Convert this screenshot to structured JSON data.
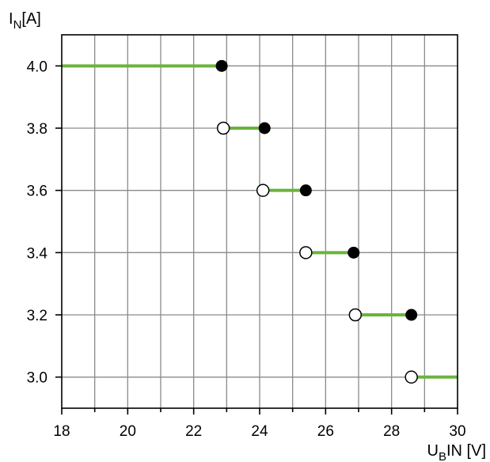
{
  "chart_data": {
    "type": "line",
    "xlabel": {
      "main": "U",
      "sub": "B",
      "rest": "IN [V]"
    },
    "ylabel": {
      "main": "I",
      "sub": "N",
      "rest": "[A]"
    },
    "xlim": [
      18,
      30
    ],
    "ylim": [
      2.9,
      4.1
    ],
    "x_ticks": [
      "18",
      "20",
      "22",
      "24",
      "26",
      "28",
      "30"
    ],
    "y_ticks": [
      "4.0",
      "3.8",
      "3.6",
      "3.4",
      "3.2",
      "3.0"
    ],
    "x_gridlines": [
      19,
      20,
      21,
      22,
      23,
      24,
      25,
      26,
      27,
      28,
      29
    ],
    "y_gridlines": [
      3.0,
      3.2,
      3.4,
      3.6,
      3.8,
      4.0
    ],
    "grid": true,
    "series_color": "#6ab43c",
    "segments": [
      {
        "x_start": 18.0,
        "x_end": 22.85,
        "y": 4.0,
        "start_marker": "none",
        "end_marker": "filled"
      },
      {
        "x_start": 22.9,
        "x_end": 24.15,
        "y": 3.8,
        "start_marker": "open",
        "end_marker": "filled"
      },
      {
        "x_start": 24.1,
        "x_end": 25.4,
        "y": 3.6,
        "start_marker": "open",
        "end_marker": "filled"
      },
      {
        "x_start": 25.4,
        "x_end": 26.85,
        "y": 3.4,
        "start_marker": "open",
        "end_marker": "filled"
      },
      {
        "x_start": 26.9,
        "x_end": 28.6,
        "y": 3.2,
        "start_marker": "open",
        "end_marker": "filled"
      },
      {
        "x_start": 28.6,
        "x_end": 30.0,
        "y": 3.0,
        "start_marker": "open",
        "end_marker": "none"
      }
    ]
  }
}
